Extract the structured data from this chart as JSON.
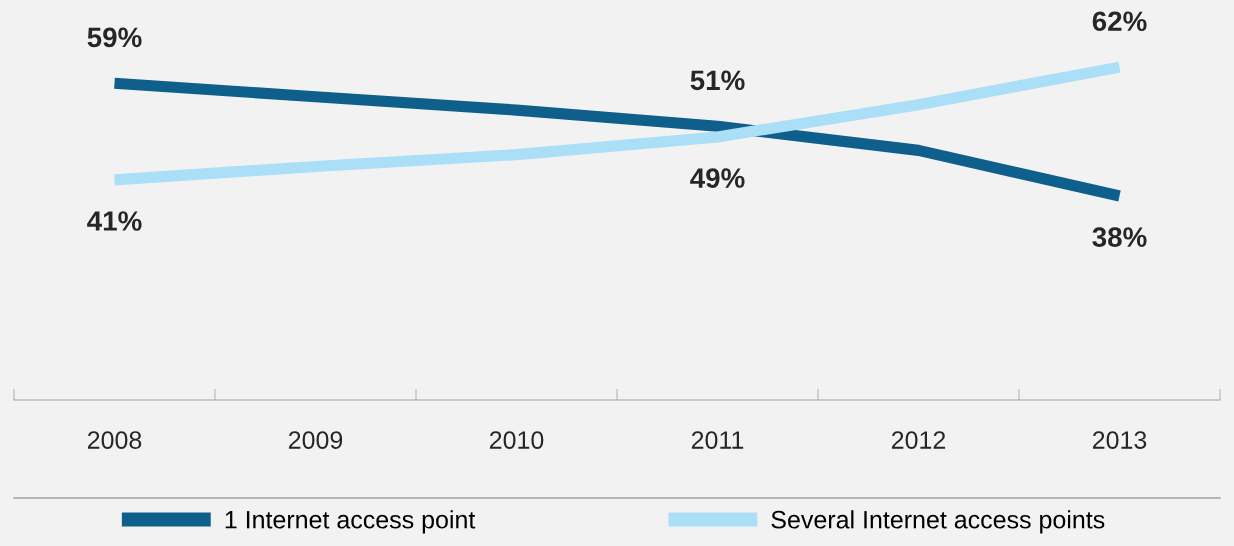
{
  "chart_data": {
    "type": "line",
    "categories": [
      "2008",
      "2009",
      "2010",
      "2011",
      "2012",
      "2013"
    ],
    "series": [
      {
        "name": "1 Internet access point",
        "color": "#0f5f8c",
        "values": [
          59,
          56.5,
          54,
          51,
          46.5,
          38
        ],
        "value_labels": [
          "59%",
          null,
          null,
          "51%",
          null,
          "38%"
        ]
      },
      {
        "name": "Several Internet access points",
        "color": "#aadff7",
        "values": [
          41,
          43.5,
          45.7,
          49,
          55,
          62
        ],
        "value_labels": [
          "41%",
          null,
          null,
          "49%",
          null,
          "62%"
        ]
      }
    ],
    "ylim": [
      0,
      74
    ],
    "tick_labels": "x",
    "legend": "bottom",
    "marker": "none",
    "line_style": "solid"
  }
}
